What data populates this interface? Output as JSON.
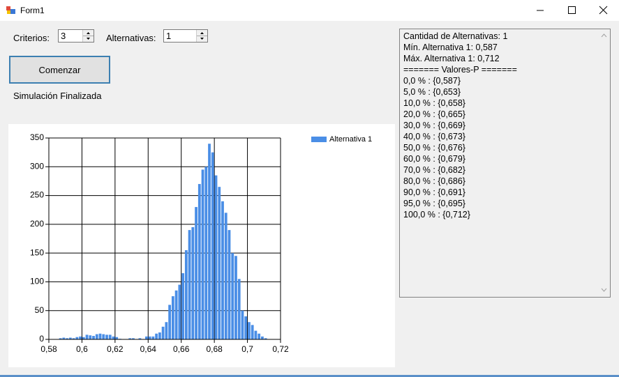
{
  "window": {
    "title": "Form1"
  },
  "form": {
    "criterios_label": "Criterios:",
    "criterios_value": "3",
    "alternativas_label": "Alternativas:",
    "alternativas_value": "1",
    "button": "Comenzar",
    "status": "Simulación Finalizada"
  },
  "textbox": {
    "lines": [
      "Cantidad de Alternativas: 1",
      "Mín. Alternativa 1: 0,587",
      "Máx. Alternativa 1: 0,712",
      "======= Valores-P =======",
      "0,0 % : {0,587}",
      "5,0 % : {0,653}",
      "10,0 % : {0,658}",
      "20,0 % : {0,665}",
      "30,0 % : {0,669}",
      "40,0 % : {0,673}",
      "50,0 % : {0,676}",
      "60,0 % : {0,679}",
      "70,0 % : {0,682}",
      "80,0 % : {0,686}",
      "90,0 % : {0,691}",
      "95,0 % : {0,695}",
      "100,0 % : {0,712}"
    ]
  },
  "chart_data": {
    "type": "histogram",
    "series": [
      {
        "name": "Alternativa 1",
        "color": "#4a8ee6",
        "bins": [
          0.586,
          0.588,
          0.59,
          0.592,
          0.594,
          0.596,
          0.598,
          0.6,
          0.602,
          0.604,
          0.606,
          0.608,
          0.61,
          0.612,
          0.614,
          0.616,
          0.618,
          0.62,
          0.622,
          0.624,
          0.626,
          0.628,
          0.63,
          0.632,
          0.634,
          0.636,
          0.638,
          0.64,
          0.642,
          0.644,
          0.646,
          0.648,
          0.65,
          0.652,
          0.654,
          0.656,
          0.658,
          0.66,
          0.662,
          0.664,
          0.666,
          0.668,
          0.67,
          0.672,
          0.674,
          0.676,
          0.678,
          0.68,
          0.682,
          0.684,
          0.686,
          0.688,
          0.69,
          0.692,
          0.694,
          0.696,
          0.698,
          0.7,
          0.702,
          0.704,
          0.706,
          0.708,
          0.71,
          0.712
        ],
        "values": [
          2,
          3,
          2,
          3,
          2,
          4,
          5,
          4,
          8,
          7,
          6,
          9,
          10,
          9,
          8,
          8,
          5,
          4,
          1,
          0,
          0,
          2,
          2,
          0,
          2,
          0,
          5,
          5,
          5,
          10,
          12,
          22,
          30,
          60,
          75,
          85,
          95,
          115,
          155,
          190,
          195,
          230,
          270,
          295,
          300,
          340,
          325,
          285,
          265,
          240,
          220,
          190,
          150,
          145,
          105,
          50,
          40,
          30,
          25,
          15,
          10,
          5,
          2
        ]
      }
    ],
    "xlim": [
      0.58,
      0.72
    ],
    "xticks": [
      {
        "value": 0.58,
        "label": "0,58"
      },
      {
        "value": 0.6,
        "label": "0,6"
      },
      {
        "value": 0.62,
        "label": "0,62"
      },
      {
        "value": 0.64,
        "label": "0,64"
      },
      {
        "value": 0.66,
        "label": "0,66"
      },
      {
        "value": 0.68,
        "label": "0,68"
      },
      {
        "value": 0.7,
        "label": "0,7"
      },
      {
        "value": 0.72,
        "label": "0,72"
      }
    ],
    "ylim": [
      0,
      350
    ],
    "yticks": [
      0,
      50,
      100,
      150,
      200,
      250,
      300,
      350
    ],
    "grid": true,
    "legend": "top-right"
  }
}
